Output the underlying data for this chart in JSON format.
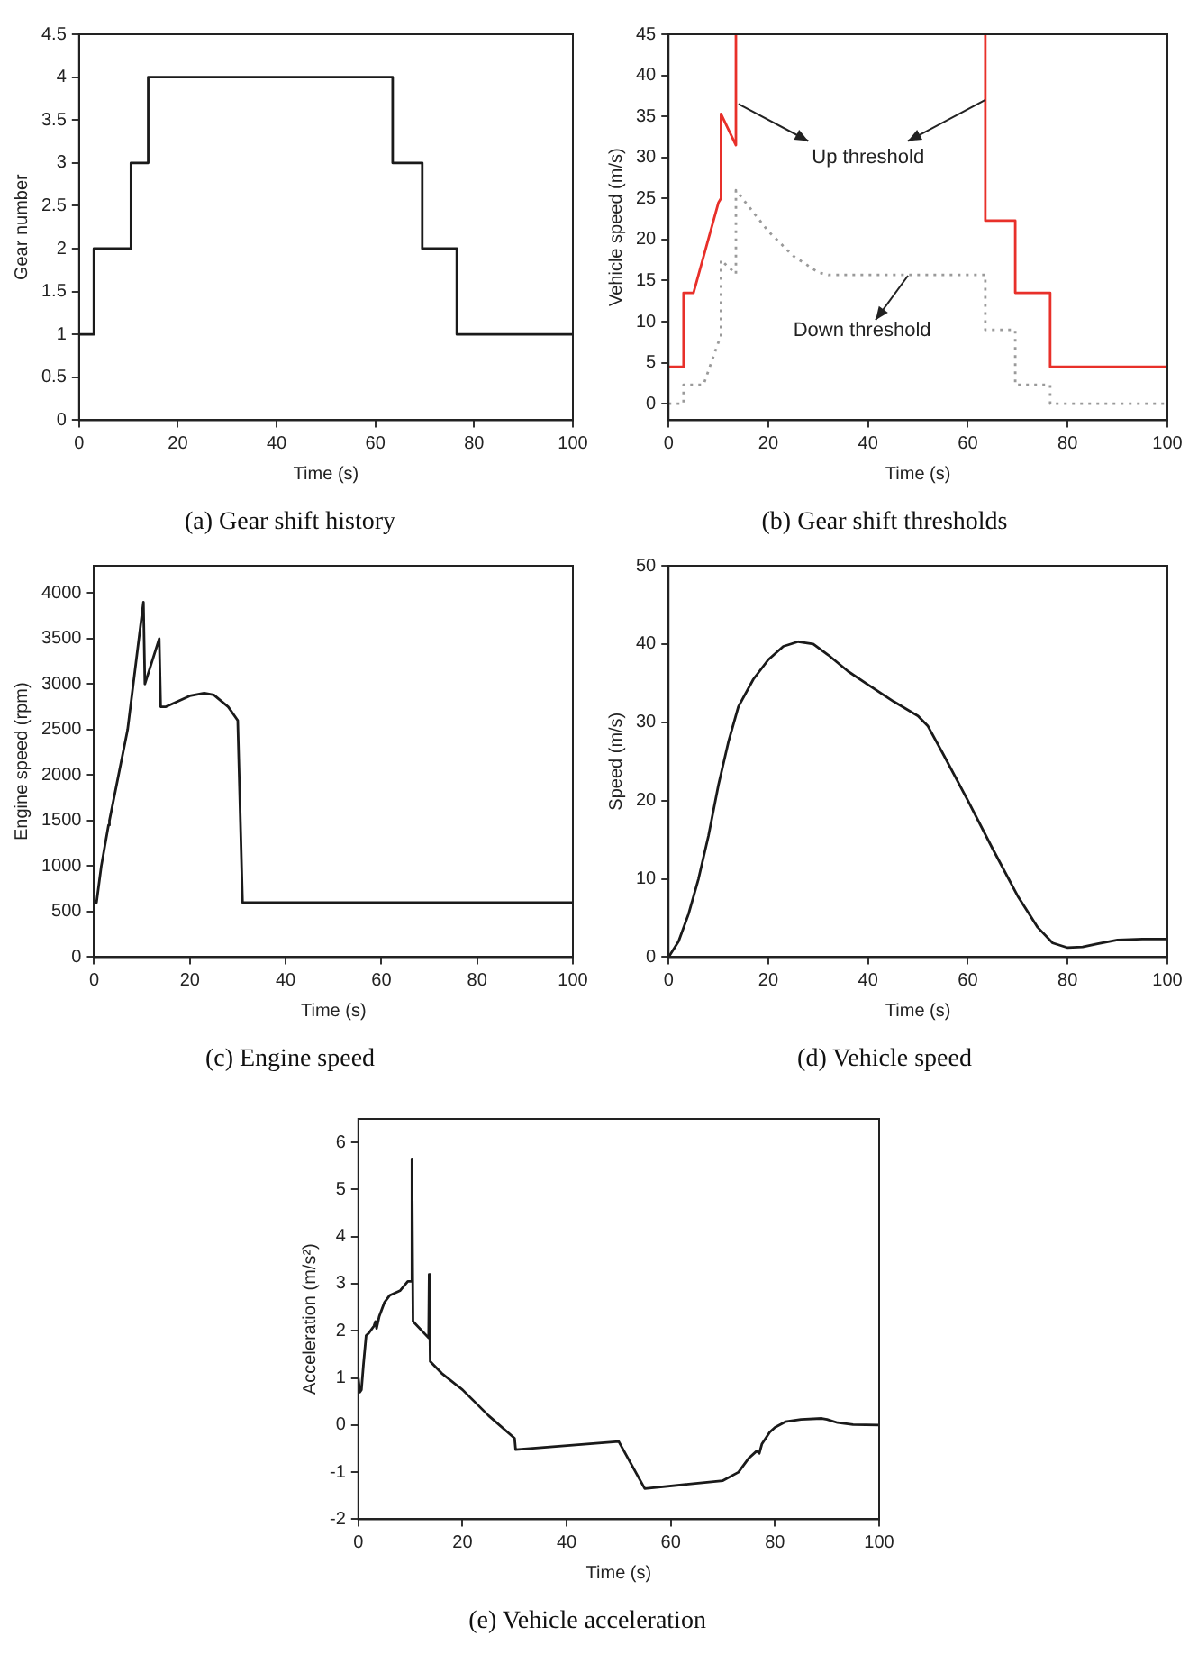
{
  "chart_data": [
    {
      "type": "step",
      "title": "(a) Gear shift history",
      "xlabel": "Time (s)",
      "ylabel": "Gear number",
      "xlim": [
        0,
        100
      ],
      "xticks": [
        0,
        20,
        40,
        60,
        80,
        100
      ],
      "ylim": [
        0,
        4.5
      ],
      "yticks": [
        0,
        0.5,
        1,
        1.5,
        2,
        2.5,
        3,
        3.5,
        4,
        4.5
      ],
      "series": [
        {
          "color": "#1a1a1a",
          "x": [
            0,
            3,
            10.5,
            14,
            63.5,
            69.5,
            76.5,
            100
          ],
          "values": [
            1,
            2,
            3,
            4,
            3,
            2,
            1,
            1
          ]
        }
      ]
    },
    {
      "type": "line",
      "title": "(b) Gear shift thresholds",
      "xlabel": "Time (s)",
      "ylabel": "Vehicle speed (m/s)",
      "xlim": [
        0,
        100
      ],
      "xticks": [
        0,
        20,
        40,
        60,
        80,
        100
      ],
      "ylim": [
        -2,
        45
      ],
      "yticks": [
        0,
        5,
        10,
        15,
        20,
        25,
        30,
        35,
        40,
        45
      ],
      "annotations": [
        "Up threshold",
        "Down threshold"
      ],
      "series": [
        {
          "color": "#e8302a",
          "line_style": "solid",
          "x": [
            0,
            3,
            3,
            5,
            10,
            10.5,
            10.5,
            13.5,
            13.5,
            40,
            63.5,
            63.5,
            69.5,
            69.5,
            76.5,
            76.5,
            100
          ],
          "values": [
            4.5,
            4.5,
            13.5,
            13.5,
            24.5,
            25,
            35.3,
            31.5,
            45,
            null,
            45,
            22.3,
            22.3,
            13.5,
            13.5,
            4.5,
            4.5
          ]
        },
        {
          "color": "#9a9a9a",
          "line_style": "dotted",
          "x": [
            0,
            3,
            3,
            7,
            10,
            10.5,
            10.5,
            13.5,
            13.5,
            20,
            25,
            30,
            32,
            63.5,
            63.5,
            69.5,
            69.5,
            76.5,
            76.5,
            100
          ],
          "values": [
            0,
            0,
            2.3,
            2.3,
            7.5,
            8,
            17.5,
            15.8,
            26,
            21,
            18,
            16,
            15.7,
            15.7,
            9,
            9,
            2.3,
            2.3,
            0,
            0
          ]
        }
      ]
    },
    {
      "type": "line",
      "title": "(c) Engine speed",
      "xlabel": "Time (s)",
      "ylabel": "Engine speed (rpm)",
      "xlim": [
        0,
        100
      ],
      "xticks": [
        0,
        20,
        40,
        60,
        80,
        100
      ],
      "ylim": [
        0,
        4300
      ],
      "yticks": [
        0,
        500,
        1000,
        1500,
        2000,
        2500,
        3000,
        3500,
        4000
      ],
      "series": [
        {
          "color": "#1a1a1a",
          "x": [
            0,
            0.5,
            1.5,
            3,
            3.2,
            7,
            10.3,
            10.6,
            13.6,
            13.9,
            15,
            20,
            23,
            25,
            28,
            30,
            31,
            100
          ],
          "values": [
            600,
            600,
            1000,
            1450,
            1500,
            2500,
            3900,
            3000,
            3500,
            2750,
            2750,
            2870,
            2900,
            2880,
            2750,
            2600,
            600,
            600
          ]
        }
      ]
    },
    {
      "type": "line",
      "title": "(d) Vehicle speed",
      "xlabel": "Time (s)",
      "ylabel": "Speed (m/s)",
      "xlim": [
        0,
        100
      ],
      "xticks": [
        0,
        20,
        40,
        60,
        80,
        100
      ],
      "ylim": [
        0,
        50
      ],
      "yticks": [
        0,
        10,
        20,
        30,
        40,
        50
      ],
      "series": [
        {
          "color": "#1a1a1a",
          "x": [
            0,
            2,
            4,
            6,
            8,
            10,
            12,
            14,
            17,
            20,
            23,
            26,
            29,
            32,
            36,
            40,
            45,
            50,
            52,
            55,
            60,
            65,
            70,
            74,
            77,
            80,
            83,
            86,
            90,
            95,
            100
          ],
          "values": [
            0,
            2,
            5.5,
            10,
            15.5,
            22,
            27.5,
            32,
            35.5,
            38,
            39.7,
            40.3,
            40,
            38.6,
            36.5,
            34.8,
            32.7,
            30.8,
            29.5,
            26,
            20,
            13.8,
            7.8,
            3.8,
            1.8,
            1.2,
            1.3,
            1.7,
            2.2,
            2.3,
            2.3
          ]
        }
      ]
    },
    {
      "type": "line",
      "title": "(e) Vehicle acceleration",
      "xlabel": "Time (s)",
      "ylabel": "Acceleration (m/s²)",
      "xlim": [
        0,
        100
      ],
      "xticks": [
        0,
        20,
        40,
        60,
        80,
        100
      ],
      "ylim": [
        -2,
        6.5
      ],
      "yticks": [
        -2,
        -1,
        0,
        1,
        2,
        3,
        4,
        5,
        6
      ],
      "series": [
        {
          "color": "#1a1a1a",
          "x": [
            0,
            0.3,
            0.6,
            1,
            1.5,
            2,
            3,
            3.3,
            3.5,
            4,
            5,
            6,
            8,
            9.5,
            10.2,
            10.3,
            10.5,
            13.5,
            13.6,
            13.8,
            16,
            20,
            25,
            30,
            30.2,
            50,
            55,
            70,
            73,
            75,
            76.5,
            77,
            77.5,
            79,
            80,
            82,
            85,
            89,
            90,
            92,
            95,
            100
          ],
          "values": [
            1,
            0.7,
            0.75,
            1.3,
            1.9,
            1.95,
            2.1,
            2.2,
            2.05,
            2.3,
            2.6,
            2.75,
            2.85,
            3.05,
            3.05,
            5.65,
            2.2,
            1.85,
            3.2,
            1.35,
            1.1,
            0.75,
            0.2,
            -0.28,
            -0.52,
            -0.35,
            -1.35,
            -1.18,
            -1,
            -0.7,
            -0.55,
            -0.6,
            -0.4,
            -0.15,
            -0.05,
            0.07,
            0.12,
            0.14,
            0.12,
            0.05,
            0.01,
            0
          ]
        }
      ]
    }
  ]
}
